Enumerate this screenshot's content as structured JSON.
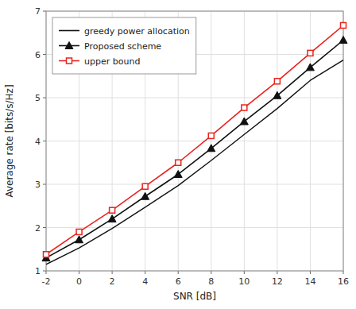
{
  "chart_data": {
    "type": "line",
    "x": [
      -2,
      0,
      2,
      4,
      6,
      8,
      10,
      12,
      14,
      16
    ],
    "xlabel": "SNR [dB]",
    "ylabel": "Average rate [bits/s/Hz]",
    "xlim": [
      -2,
      16
    ],
    "ylim": [
      1,
      7
    ],
    "xticks": [
      -2,
      0,
      2,
      4,
      6,
      8,
      10,
      12,
      14,
      16
    ],
    "yticks": [
      1,
      2,
      3,
      4,
      5,
      6,
      7
    ],
    "grid": true,
    "legend": "upper left",
    "series": [
      {
        "name": "greedy power allocation",
        "color": "#111111",
        "marker": "none",
        "line_style": "solid",
        "values": [
          1.15,
          1.53,
          1.98,
          2.47,
          2.97,
          3.55,
          4.15,
          4.75,
          5.4,
          5.87
        ]
      },
      {
        "name": "Proposed scheme",
        "color": "#111111",
        "marker": "triangle",
        "line_style": "solid",
        "values": [
          1.3,
          1.72,
          2.2,
          2.72,
          3.23,
          3.83,
          4.45,
          5.05,
          5.7,
          6.33
        ]
      },
      {
        "name": "upper bound",
        "color": "#e8231e",
        "marker": "square",
        "line_style": "solid",
        "values": [
          1.38,
          1.9,
          2.4,
          2.95,
          3.5,
          4.12,
          4.77,
          5.38,
          6.03,
          6.67
        ]
      }
    ]
  }
}
